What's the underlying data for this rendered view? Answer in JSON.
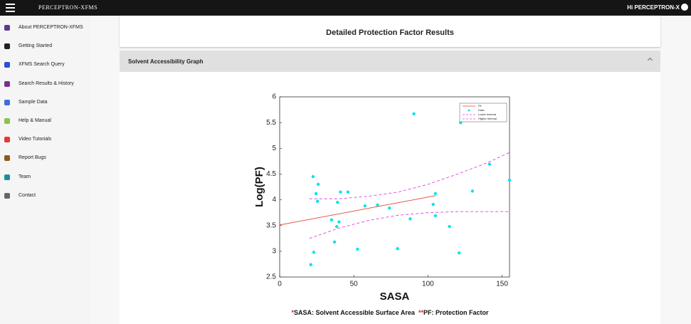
{
  "header": {
    "logo": "PERCEPTRON-XFMS",
    "greeting": "Hi PERCEPTRON-X"
  },
  "sidebar": {
    "items": [
      "About PERCEPTRON-XFMS",
      "Getting Started",
      "XFMS Search Query",
      "Search Results & History",
      "Sample Data",
      "Help & Manual",
      "Video Tutorials",
      "Report Bugs",
      "Team",
      "Contact"
    ]
  },
  "page": {
    "title": "Detailed Protection Factor Results",
    "section": "Solvent Accessibility Graph",
    "footnote": [
      {
        "mark": "*",
        "text": "SASA: Solvent Accessible Surface Area"
      },
      {
        "mark": "**",
        "text": "PF: Protection Factor"
      }
    ]
  },
  "chart_data": {
    "type": "scatter",
    "xlabel": "SASA",
    "ylabel": "Log(PF)",
    "xlim": [
      0,
      155
    ],
    "ylim": [
      2.5,
      6
    ],
    "xticks": [
      0,
      50,
      100,
      150
    ],
    "yticks": [
      2.5,
      3,
      3.5,
      4,
      4.5,
      5,
      5.5,
      6
    ],
    "legend": "upper right",
    "series": [
      {
        "name": "Fit",
        "color": "#e8432f",
        "style": "solid",
        "x": [
          0,
          105
        ],
        "values": [
          3.51,
          4.08
        ]
      },
      {
        "name": "Data",
        "color": "#00e5ee",
        "style": "marker",
        "x": [
          21,
          23,
          22.5,
          24.5,
          25.5,
          26,
          35,
          37,
          38.5,
          39,
          40,
          41,
          46,
          52.5,
          57.5,
          66,
          74,
          79.5,
          88,
          90.5,
          103.5,
          105,
          105,
          114.5,
          121,
          122,
          130,
          141.5,
          155
        ],
        "values": [
          2.74,
          2.98,
          4.45,
          4.12,
          3.97,
          4.3,
          3.61,
          3.18,
          3.48,
          3.95,
          3.57,
          4.15,
          4.15,
          3.04,
          3.88,
          3.9,
          3.84,
          3.05,
          3.63,
          5.67,
          3.91,
          4.12,
          3.69,
          3.48,
          2.97,
          5.5,
          4.17,
          4.69,
          4.38
        ]
      },
      {
        "name": "Lower Interval",
        "color": "#e040e0",
        "style": "dashed",
        "x": [
          20,
          40,
          60,
          80,
          100,
          120,
          140,
          155
        ],
        "values": [
          3.25,
          3.45,
          3.6,
          3.7,
          3.75,
          3.77,
          3.77,
          3.77
        ]
      },
      {
        "name": "Higher Interval",
        "color": "#e040e0",
        "style": "dashed",
        "x": [
          20,
          40,
          60,
          80,
          100,
          120,
          140,
          155
        ],
        "values": [
          4.02,
          4.02,
          4.07,
          4.15,
          4.3,
          4.5,
          4.72,
          4.92
        ]
      }
    ]
  }
}
